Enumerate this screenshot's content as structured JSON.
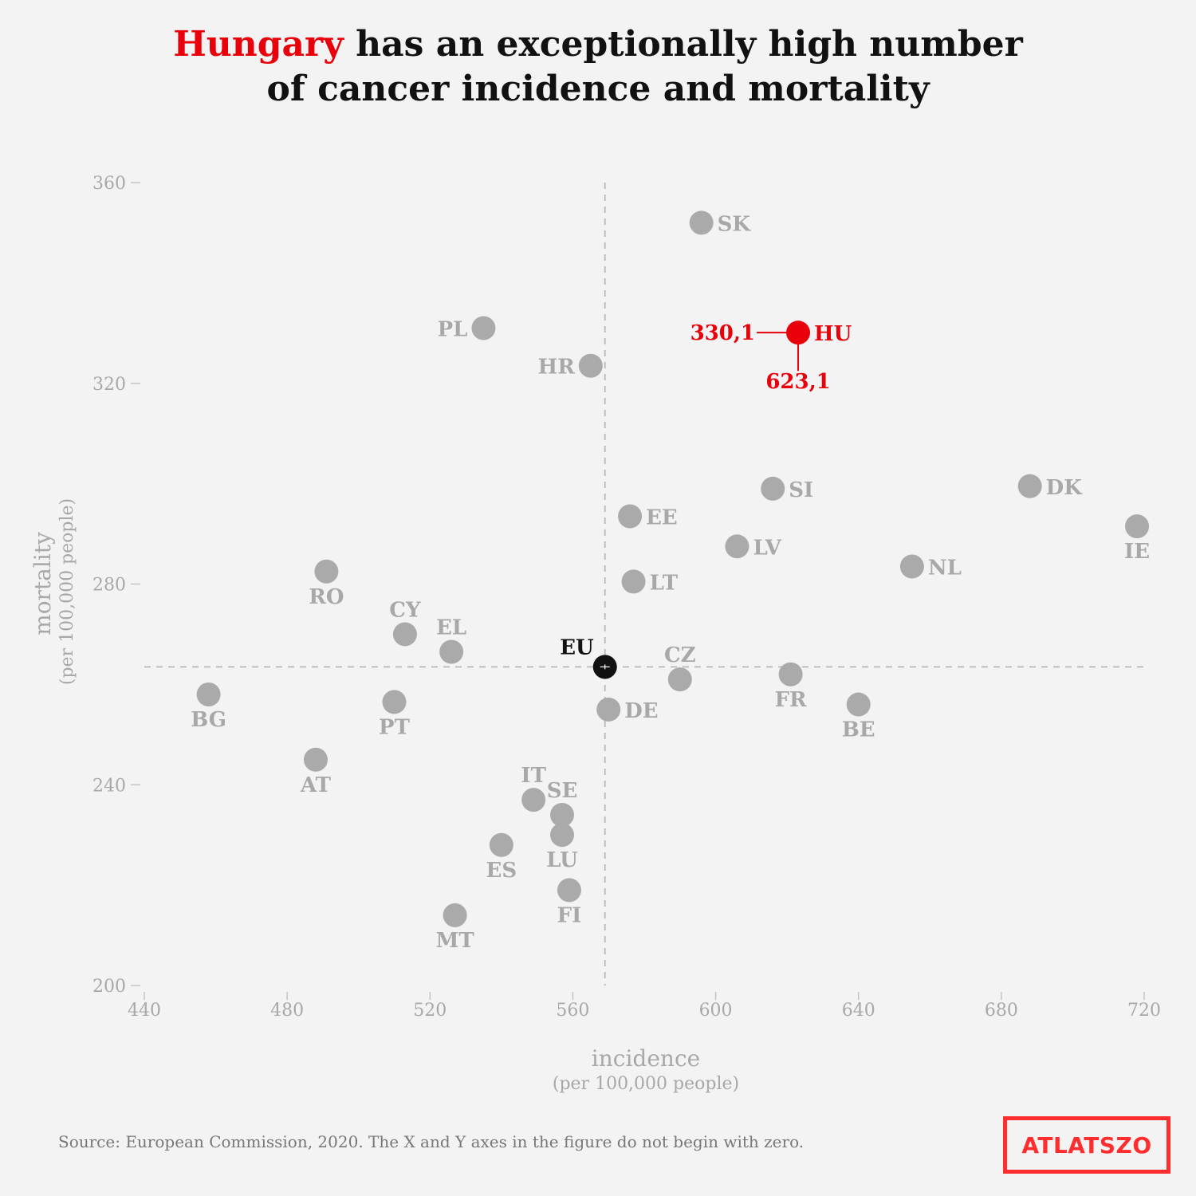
{
  "header": {
    "title_highlight": "Hungary",
    "title_line1_rest": " has an exceptionally high number",
    "title_line2": "of cancer incidence and mortality"
  },
  "footer": {
    "source": "Source: European Commission, 2020.  The X and Y axes in the figure do not begin with zero.",
    "logo_text": "ATLATSZO"
  },
  "colors": {
    "point": "#aaaaaa",
    "highlight": "#e8000b",
    "eu": "#111111",
    "background": "#f3f3f3",
    "logo": "#ff2d2d"
  },
  "chart_data": {
    "type": "scatter",
    "xlabel": "incidence",
    "xlabel_sub": "(per 100,000 people)",
    "ylabel": "mortality",
    "ylabel_sub": "(per 100,000 people)",
    "xlim": [
      440,
      720
    ],
    "ylim": [
      200,
      360
    ],
    "xticks": [
      440,
      480,
      520,
      560,
      600,
      640,
      680,
      720
    ],
    "yticks": [
      200,
      240,
      280,
      320,
      360
    ],
    "grid": false,
    "eu_reference": {
      "label": "EU",
      "x": 569,
      "y": 263.5
    },
    "highlight": {
      "label": "HU",
      "x": 623.1,
      "y": 330.1,
      "x_annotation": "623,1",
      "y_annotation": "330,1"
    },
    "points": [
      {
        "label": "SK",
        "x": 596,
        "y": 352,
        "label_pos": "right"
      },
      {
        "label": "PL",
        "x": 535,
        "y": 331,
        "label_pos": "left"
      },
      {
        "label": "HR",
        "x": 565,
        "y": 323.5,
        "label_pos": "left"
      },
      {
        "label": "SI",
        "x": 616,
        "y": 299,
        "label_pos": "right"
      },
      {
        "label": "DK",
        "x": 688,
        "y": 299.5,
        "label_pos": "right"
      },
      {
        "label": "EE",
        "x": 576,
        "y": 293.5,
        "label_pos": "right"
      },
      {
        "label": "IE",
        "x": 718,
        "y": 291.5,
        "label_pos": "below"
      },
      {
        "label": "LV",
        "x": 606,
        "y": 287.5,
        "label_pos": "right"
      },
      {
        "label": "NL",
        "x": 655,
        "y": 283.5,
        "label_pos": "right"
      },
      {
        "label": "RO",
        "x": 491,
        "y": 282.5,
        "label_pos": "below"
      },
      {
        "label": "LT",
        "x": 577,
        "y": 280.5,
        "label_pos": "right"
      },
      {
        "label": "CY",
        "x": 513,
        "y": 270,
        "label_pos": "above"
      },
      {
        "label": "EL",
        "x": 526,
        "y": 266.5,
        "label_pos": "above"
      },
      {
        "label": "CZ",
        "x": 590,
        "y": 261,
        "label_pos": "above"
      },
      {
        "label": "FR",
        "x": 621,
        "y": 262,
        "label_pos": "below"
      },
      {
        "label": "BG",
        "x": 458,
        "y": 258,
        "label_pos": "below"
      },
      {
        "label": "PT",
        "x": 510,
        "y": 256.5,
        "label_pos": "below"
      },
      {
        "label": "DE",
        "x": 570,
        "y": 255,
        "label_pos": "right"
      },
      {
        "label": "BE",
        "x": 640,
        "y": 256,
        "label_pos": "below"
      },
      {
        "label": "AT",
        "x": 488,
        "y": 245,
        "label_pos": "below"
      },
      {
        "label": "IT",
        "x": 549,
        "y": 237,
        "label_pos": "above"
      },
      {
        "label": "SE",
        "x": 557,
        "y": 234,
        "label_pos": "above"
      },
      {
        "label": "LU",
        "x": 557,
        "y": 230,
        "label_pos": "below"
      },
      {
        "label": "ES",
        "x": 540,
        "y": 228,
        "label_pos": "below"
      },
      {
        "label": "FI",
        "x": 559,
        "y": 219,
        "label_pos": "below"
      },
      {
        "label": "MT",
        "x": 527,
        "y": 214,
        "label_pos": "below"
      }
    ]
  }
}
